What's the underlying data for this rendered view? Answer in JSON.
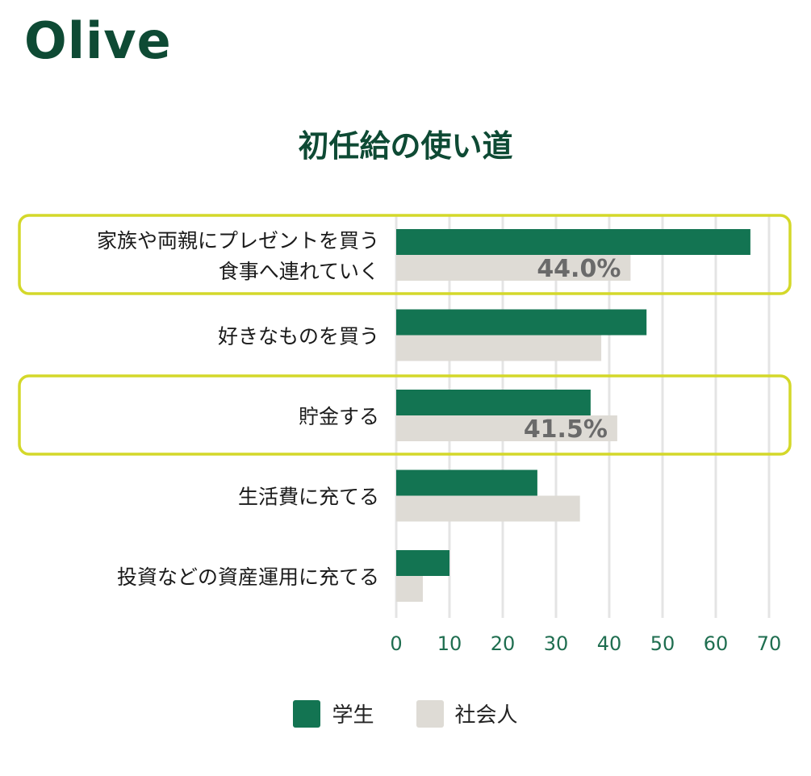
{
  "brand": {
    "name": "Olive"
  },
  "colors": {
    "student": "#137452",
    "worker": "#dedbd5",
    "highlight": "#d4d82a",
    "axis_text": "#1f6e50",
    "grid": "#e4e4e4",
    "annotation": "#6a6a6a"
  },
  "chart_data": {
    "type": "bar",
    "orientation": "horizontal",
    "title": "初任給の使い道",
    "categories": [
      [
        "家族や両親にプレゼントを買う",
        "食事へ連れていく"
      ],
      [
        "好きなものを買う"
      ],
      [
        "貯金する"
      ],
      [
        "生活費に充てる"
      ],
      [
        "投資などの資産運用に充てる"
      ]
    ],
    "series": [
      {
        "name": "学生",
        "values": [
          66.5,
          47,
          36.5,
          26.5,
          10
        ]
      },
      {
        "name": "社会人",
        "values": [
          44.0,
          38.5,
          41.5,
          34.5,
          5
        ]
      }
    ],
    "xlim": [
      0,
      70
    ],
    "xticks": [
      0,
      10,
      20,
      30,
      40,
      50,
      60,
      70
    ],
    "grid": true,
    "highlighted_categories": [
      0,
      2
    ],
    "annotations": [
      {
        "category": 0,
        "series": "社会人",
        "label": "44.0%"
      },
      {
        "category": 2,
        "series": "社会人",
        "label": "41.5%"
      }
    ],
    "legend_position": "bottom-center"
  }
}
